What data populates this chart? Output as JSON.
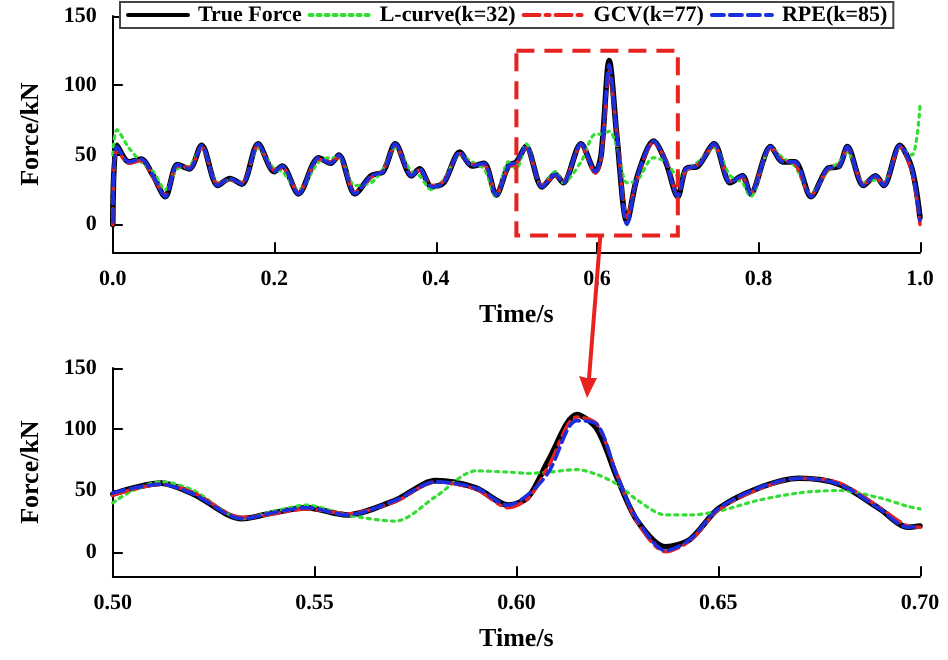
{
  "chart_data": [
    {
      "type": "line",
      "xlabel": "Time/s",
      "ylabel": "Force/kN",
      "xlim": [
        0,
        1
      ],
      "xticks": [
        {
          "value": 0,
          "label": "0.0"
        },
        0.2,
        0.4,
        0.6,
        0.8,
        {
          "value": 1,
          "label": "1.0"
        }
      ],
      "ylim": [
        -20,
        150
      ],
      "yticks": [
        0,
        50,
        100,
        150
      ],
      "grid": false,
      "legend": "top",
      "marker": "none",
      "x": [
        0,
        0.005,
        0.02,
        0.035,
        0.05,
        0.065,
        0.08,
        0.095,
        0.11,
        0.13,
        0.145,
        0.16,
        0.18,
        0.2,
        0.21,
        0.23,
        0.255,
        0.27,
        0.28,
        0.3,
        0.32,
        0.335,
        0.35,
        0.37,
        0.38,
        0.395,
        0.41,
        0.43,
        0.445,
        0.46,
        0.475,
        0.49,
        0.5,
        0.512,
        0.532,
        0.548,
        0.558,
        0.58,
        0.598,
        0.605,
        0.615,
        0.625,
        0.637,
        0.65,
        0.67,
        0.685,
        0.7,
        0.71,
        0.725,
        0.745,
        0.765,
        0.78,
        0.79,
        0.815,
        0.83,
        0.845,
        0.865,
        0.885,
        0.9,
        0.91,
        0.93,
        0.945,
        0.955,
        0.975,
        0.99,
        1
      ],
      "series": [
        {
          "name": "True Force",
          "color": "#000000",
          "line_style": "solid",
          "values": [
            0,
            57,
            45,
            47,
            35,
            20,
            43,
            40,
            57,
            28,
            33,
            29,
            58,
            38,
            42,
            22,
            48,
            44,
            50,
            22,
            35,
            38,
            58,
            35,
            40,
            27,
            30,
            52,
            42,
            44,
            21,
            42,
            45,
            56,
            27,
            36,
            30,
            58,
            38,
            50,
            118,
            60,
            2,
            35,
            60,
            45,
            20,
            40,
            42,
            58,
            30,
            35,
            22,
            56,
            45,
            45,
            20,
            40,
            42,
            56,
            28,
            35,
            28,
            57,
            40,
            5
          ]
        },
        {
          "name": "L-curve(k=32)",
          "color": "#33dd33",
          "line_style": "dotted",
          "values": [
            50,
            68,
            55,
            45,
            38,
            25,
            40,
            42,
            55,
            30,
            32,
            30,
            55,
            40,
            38,
            25,
            45,
            48,
            48,
            28,
            30,
            40,
            55,
            38,
            35,
            25,
            32,
            50,
            45,
            40,
            20,
            45,
            40,
            58,
            27,
            38,
            30,
            45,
            65,
            65,
            67,
            55,
            30,
            32,
            48,
            45,
            35,
            38,
            45,
            55,
            35,
            30,
            20,
            55,
            48,
            42,
            22,
            38,
            45,
            52,
            30,
            32,
            30,
            55,
            50,
            85
          ]
        },
        {
          "name": "GCV(k=77)",
          "color": "#e8231f",
          "line_style": "dashed",
          "values": [
            0,
            55,
            44,
            46,
            34,
            21,
            42,
            41,
            56,
            29,
            32,
            30,
            57,
            39,
            41,
            23,
            47,
            45,
            49,
            23,
            34,
            39,
            57,
            36,
            39,
            28,
            31,
            51,
            43,
            43,
            22,
            41,
            44,
            55,
            28,
            35,
            31,
            57,
            37,
            48,
            110,
            62,
            5,
            34,
            59,
            46,
            21,
            39,
            43,
            57,
            31,
            34,
            23,
            55,
            46,
            44,
            21,
            39,
            43,
            55,
            29,
            34,
            29,
            56,
            38,
            0
          ]
        },
        {
          "name": "RPE(k=85)",
          "color": "#1b2ee0",
          "line_style": "dashed",
          "values": [
            2,
            56,
            45,
            47,
            35,
            20,
            43,
            40,
            57,
            28,
            33,
            29,
            58,
            38,
            42,
            22,
            48,
            44,
            50,
            22,
            35,
            38,
            58,
            35,
            40,
            27,
            30,
            52,
            42,
            44,
            21,
            42,
            45,
            56,
            27,
            36,
            30,
            58,
            38,
            50,
            115,
            60,
            0,
            35,
            60,
            45,
            20,
            40,
            42,
            58,
            30,
            35,
            22,
            56,
            45,
            45,
            20,
            40,
            42,
            56,
            28,
            35,
            28,
            57,
            40,
            3
          ]
        }
      ]
    },
    {
      "type": "line",
      "xlabel": "Time/s",
      "ylabel": "Force/kN",
      "xlim": [
        0.5,
        0.7
      ],
      "xticks": [
        {
          "value": 0.5,
          "label": "0.50"
        },
        0.55,
        {
          "value": 0.6,
          "label": "0.60"
        },
        0.65,
        {
          "value": 0.7,
          "label": "0.70"
        }
      ],
      "ylim": [
        -20,
        150
      ],
      "yticks": [
        0,
        50,
        100,
        150
      ],
      "grid": false,
      "marker": "none",
      "x": [
        0.5,
        0.505,
        0.512,
        0.52,
        0.532,
        0.54,
        0.548,
        0.558,
        0.57,
        0.58,
        0.59,
        0.598,
        0.603,
        0.608,
        0.615,
        0.62,
        0.625,
        0.63,
        0.637,
        0.643,
        0.65,
        0.66,
        0.67,
        0.68,
        0.69,
        0.697,
        0.7
      ],
      "series": [
        {
          "color": "#000000",
          "line_style": "solid",
          "values": [
            47,
            52,
            56,
            47,
            27,
            32,
            36,
            30,
            42,
            58,
            52,
            38,
            45,
            75,
            112,
            100,
            60,
            25,
            4,
            10,
            35,
            52,
            60,
            55,
            35,
            20,
            21
          ]
        },
        {
          "color": "#33dd33",
          "line_style": "dotted",
          "values": [
            40,
            50,
            57,
            50,
            27,
            33,
            38,
            30,
            25,
            45,
            66,
            65,
            64,
            65,
            67,
            63,
            55,
            42,
            30,
            30,
            33,
            42,
            48,
            50,
            44,
            37,
            35
          ]
        },
        {
          "color": "#e8231f",
          "line_style": "dashed",
          "values": [
            46,
            51,
            55,
            48,
            28,
            31,
            35,
            31,
            41,
            57,
            51,
            36,
            44,
            70,
            110,
            104,
            62,
            24,
            0,
            9,
            34,
            51,
            60,
            56,
            36,
            21,
            20
          ]
        },
        {
          "color": "#1b2ee0",
          "line_style": "dashed",
          "values": [
            48,
            52,
            55,
            47,
            27,
            32,
            36,
            30,
            42,
            57,
            52,
            38,
            47,
            65,
            107,
            104,
            61,
            26,
            1,
            10,
            35,
            52,
            60,
            55,
            35,
            20,
            21
          ]
        }
      ]
    }
  ]
}
